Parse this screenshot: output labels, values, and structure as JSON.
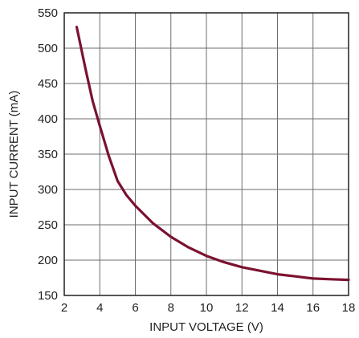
{
  "chart_data": {
    "type": "line",
    "title": "",
    "xlabel": "INPUT VOLTAGE (V)",
    "ylabel": "INPUT CURRENT (mA)",
    "xlim": [
      2,
      18
    ],
    "ylim": [
      150,
      550
    ],
    "xticks": [
      2,
      4,
      6,
      8,
      10,
      12,
      14,
      16,
      18
    ],
    "yticks": [
      150,
      200,
      250,
      300,
      350,
      400,
      450,
      500,
      550
    ],
    "x_tick_labels": [
      "2",
      "4",
      "6",
      "8",
      "10",
      "12",
      "14",
      "16",
      "18"
    ],
    "y_tick_labels": [
      "150",
      "200",
      "250",
      "300",
      "350",
      "400",
      "450",
      "500",
      "550"
    ],
    "grid": true,
    "legend": "none",
    "series": [
      {
        "color": "#7b1230",
        "x": [
          2.7,
          3.2,
          3.6,
          4,
          4.5,
          5,
          5.5,
          6,
          7,
          8,
          9,
          10,
          11,
          12,
          13,
          14,
          15,
          16,
          17,
          18
        ],
        "y": [
          530,
          470,
          425,
          390,
          348,
          312,
          292,
          277,
          252,
          233,
          218,
          206,
          197,
          190,
          185,
          180,
          177,
          174,
          173,
          172
        ]
      }
    ]
  }
}
